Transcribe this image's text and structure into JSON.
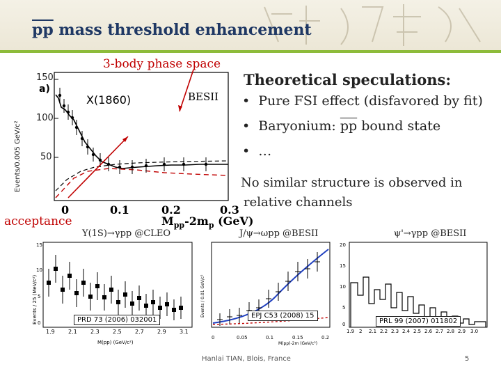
{
  "title": {
    "prefix": "pp",
    "rest": " mass threshold enhancement"
  },
  "main_plot": {
    "panel_label": "a)",
    "y_ticks": [
      "150",
      "100",
      "50"
    ],
    "y_axis": "Events/0.005 GeV/c²",
    "x_ticks": [
      "0",
      "0.1",
      "0.2",
      "0.3"
    ],
    "x_label": "M",
    "x_label_sub": "pp",
    "x_label_tail": "-2m",
    "x_label_sub2": "p",
    "x_label_unit": " (GeV)",
    "phase_space_label": "3-body phase space",
    "x1860_label": "X(1860)",
    "besii_label": "BESII",
    "acceptance_label": "acceptance"
  },
  "theory": {
    "title": "Theoretical speculations:",
    "bullets": [
      "Pure FSI effect (disfavored by fit)",
      "Baryonium: ",
      "…"
    ],
    "baryonium_pp": "pp",
    "baryonium_tail": " bound state",
    "note_line1": "No similar structure is observed in",
    "note_line2": "relative channels"
  },
  "sub_plots": [
    {
      "label": "Υ(1S)→γpp @CLEO",
      "ref": "PRD 73 (2006) 032001",
      "x_ticks": [
        "1.9",
        "2.1",
        "2.3",
        "2.5",
        "2.7",
        "2.9",
        "3.1"
      ],
      "x_axis": "M(pp) (GeV/c²)",
      "y_ticks": [
        "15",
        "10",
        "5",
        "0"
      ],
      "y_axis": "Events / 25 (MeV/c²)"
    },
    {
      "label": "J/ψ→ωpp @BESII",
      "ref": "EPJ C53 (2008) 15",
      "x_ticks": [
        "0",
        "0.05",
        "0.1",
        "0.15",
        "0.2"
      ],
      "x_axis": "M(pp)-2m (GeV/c²)",
      "y_axis": "Events / 0.01 GeV/c²"
    },
    {
      "label": "ψ'→γpp @BESII",
      "ref": "PRL 99 (2007) 011802",
      "x_ticks": [
        "1.9",
        "2",
        "2.1",
        "2.2",
        "2.3",
        "2.4",
        "2.5",
        "2.6",
        "2.7",
        "2.8",
        "2.9",
        "3.0"
      ],
      "y_ticks": [
        "20",
        "15",
        "10",
        "5",
        "0"
      ]
    }
  ],
  "footer": {
    "author": "Hanlai TIAN, Blois, France",
    "page": "5"
  },
  "colors": {
    "title": "#1f3864",
    "accent": "#8dbb3a",
    "red": "#c00000",
    "fit_blue": "#1f3fbf"
  }
}
